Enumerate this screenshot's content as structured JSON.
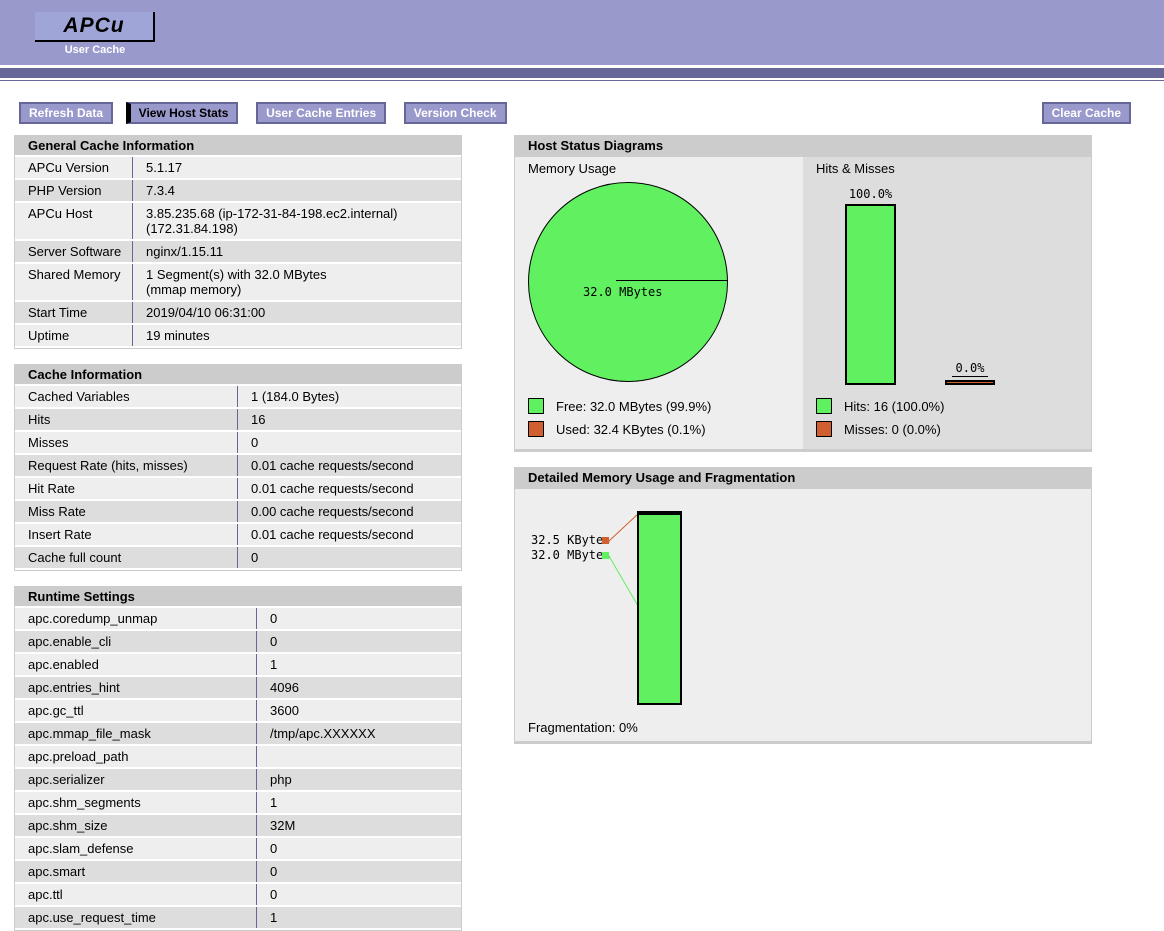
{
  "header": {
    "logo_text": "APCu",
    "subtitle": "User Cache"
  },
  "toolbar": {
    "buttons": [
      {
        "label": "Refresh Data",
        "active": false
      },
      {
        "label": "View Host Stats",
        "active": true
      },
      {
        "label": "User Cache Entries",
        "active": false
      },
      {
        "label": "Version Check",
        "active": false
      }
    ],
    "clear_cache_label": "Clear Cache"
  },
  "general_info": {
    "title": "General Cache Information",
    "rows": [
      [
        "APCu Version",
        "5.1.17"
      ],
      [
        "PHP Version",
        "7.3.4"
      ],
      [
        "APCu Host",
        "3.85.235.68 (ip-172-31-84-198.ec2.internal)\n(172.31.84.198)"
      ],
      [
        "Server Software",
        "nginx/1.15.11"
      ],
      [
        "Shared Memory",
        "1 Segment(s) with 32.0 MBytes\n(mmap memory)"
      ],
      [
        "Start Time",
        "2019/04/10 06:31:00"
      ],
      [
        "Uptime",
        "19 minutes"
      ]
    ]
  },
  "cache_info": {
    "title": "Cache Information",
    "rows": [
      [
        "Cached Variables",
        "1 (184.0 Bytes)"
      ],
      [
        "Hits",
        "16"
      ],
      [
        "Misses",
        "0"
      ],
      [
        "Request Rate (hits, misses)",
        "0.01 cache requests/second"
      ],
      [
        "Hit Rate",
        "0.01 cache requests/second"
      ],
      [
        "Miss Rate",
        "0.00 cache requests/second"
      ],
      [
        "Insert Rate",
        "0.01 cache requests/second"
      ],
      [
        "Cache full count",
        "0"
      ]
    ]
  },
  "runtime_settings": {
    "title": "Runtime Settings",
    "rows": [
      [
        "apc.coredump_unmap",
        "0"
      ],
      [
        "apc.enable_cli",
        "0"
      ],
      [
        "apc.enabled",
        "1"
      ],
      [
        "apc.entries_hint",
        "4096"
      ],
      [
        "apc.gc_ttl",
        "3600"
      ],
      [
        "apc.mmap_file_mask",
        "/tmp/apc.XXXXXX"
      ],
      [
        "apc.preload_path",
        ""
      ],
      [
        "apc.serializer",
        "php"
      ],
      [
        "apc.shm_segments",
        "1"
      ],
      [
        "apc.shm_size",
        "32M"
      ],
      [
        "apc.slam_defense",
        "0"
      ],
      [
        "apc.smart",
        "0"
      ],
      [
        "apc.ttl",
        "0"
      ],
      [
        "apc.use_request_time",
        "1"
      ]
    ]
  },
  "host_status": {
    "title": "Host Status Diagrams",
    "memory_usage": {
      "title": "Memory Usage",
      "chart_data": {
        "type": "pie",
        "center_label": "32.0 MBytes",
        "slices": [
          {
            "label": "Free",
            "value_text": "32.0 MBytes",
            "pct": 99.9,
            "color": "#60F060"
          },
          {
            "label": "Used",
            "value_text": "32.4 KBytes",
            "pct": 0.1,
            "color": "#D06030"
          }
        ]
      },
      "legend": [
        {
          "color": "#60F060",
          "label": "Free: 32.0 MBytes (99.9%)"
        },
        {
          "color": "#D06030",
          "label": "Used: 32.4 KBytes (0.1%)"
        }
      ]
    },
    "hits_misses": {
      "title": "Hits & Misses",
      "chart_data": {
        "type": "bar",
        "bars": [
          {
            "name": "Hits",
            "label": "100.0%",
            "pct": 100,
            "color": "#60F060",
            "pointer_line": false
          },
          {
            "name": "Misses",
            "label": "0.0%",
            "pct": 0,
            "color": "#D06030",
            "pointer_line": true
          }
        ]
      },
      "legend": [
        {
          "color": "#60F060",
          "label": "Hits: 16 (100.0%)"
        },
        {
          "color": "#D06030",
          "label": "Misses: 0 (0.0%)"
        }
      ]
    }
  },
  "detailed_memory": {
    "title": "Detailed Memory Usage and Fragmentation",
    "chart_data": {
      "type": "bar",
      "blocks": [
        {
          "label": "32.5 KBytes",
          "kind": "used",
          "color": "#D06030"
        },
        {
          "label": "32.0 MBytes",
          "kind": "free",
          "color": "#60F060"
        }
      ]
    },
    "fragmentation_label": "Fragmentation: 0%"
  },
  "colors": {
    "header_bg": "#9999CC",
    "header_bar": "#666699",
    "logo_bg": "#A0A5D7",
    "section_header_bg": "#CCCCCC",
    "row_light": "#EEEEEE",
    "row_dark": "#DDDDDD",
    "free_green": "#60F060",
    "used_orange": "#D06030"
  }
}
